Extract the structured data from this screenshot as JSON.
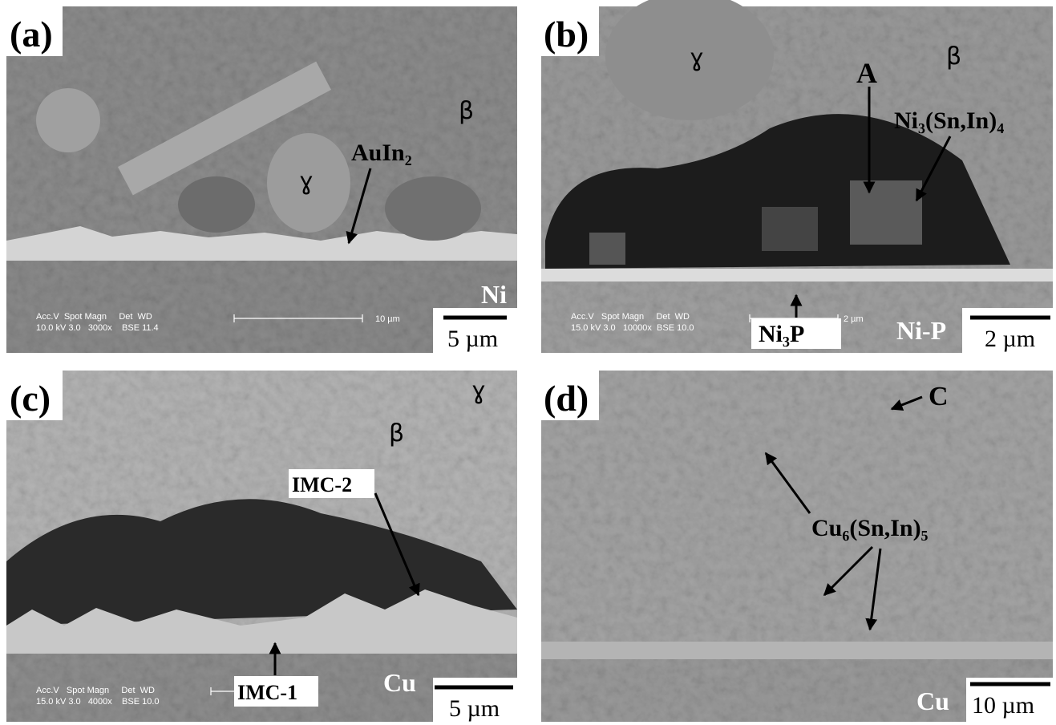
{
  "panels": [
    {
      "label": "(a)",
      "annotations": [
        "ɣ",
        "β",
        "AuIn₂",
        "Ni"
      ],
      "sem_info": {
        "header": "Acc.V  Spot Magn     Det  WD",
        "values": "10.0 kV 3.0   3000x    BSE 11.4",
        "marker": "10 µm"
      },
      "scale_bar": "5 µm"
    },
    {
      "label": "(b)",
      "annotations": [
        "ɣ",
        "β",
        "A",
        "Ni₃(Sn,In)₄",
        "Ni₃P",
        "Ni-P"
      ],
      "sem_info": {
        "header": "Acc.V   Spot Magn     Det  WD",
        "values": "15.0 kV 3.0   10000x  BSE 10.0",
        "marker": "2 µm"
      },
      "scale_bar": "2 µm"
    },
    {
      "label": "(c)",
      "annotations": [
        "ɣ",
        "β",
        "IMC-2",
        "IMC-1",
        "Cu"
      ],
      "sem_info": {
        "header": "Acc.V   Spot Magn     Det  WD",
        "values": "15.0 kV 3.0   4000x    BSE 10.0"
      },
      "scale_bar": "5 µm"
    },
    {
      "label": "(d)",
      "annotations": [
        "C",
        "Cu₆(Sn,In)₅",
        "Cu"
      ],
      "scale_bar": "10 µm"
    }
  ]
}
